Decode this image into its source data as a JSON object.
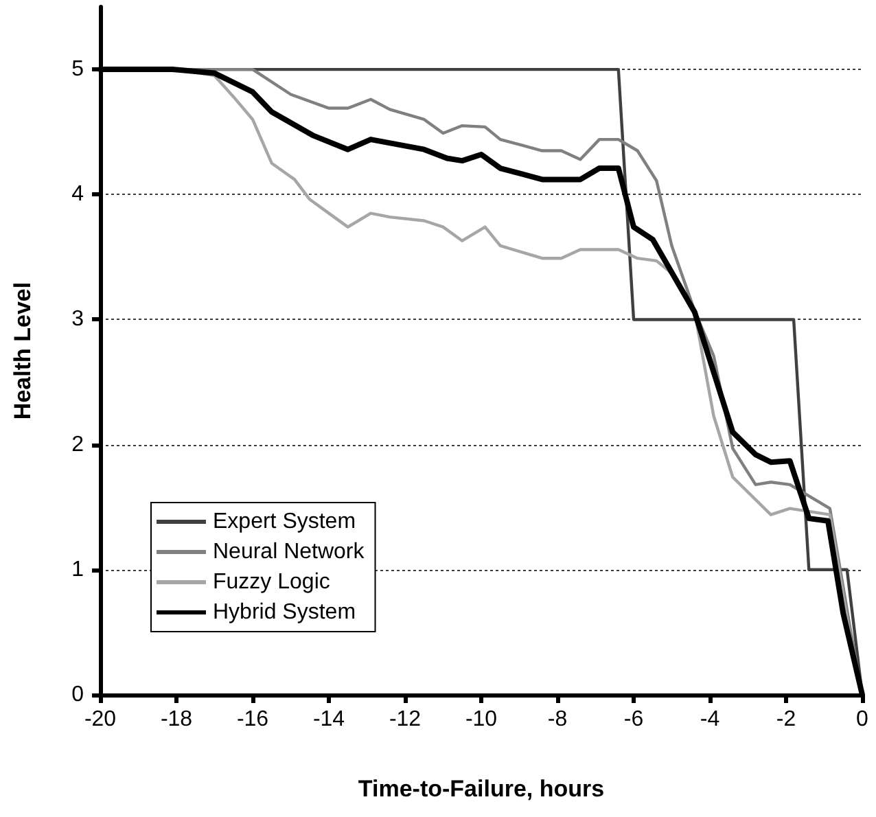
{
  "chart_data": {
    "type": "line",
    "xlabel": "Time-to-Failure, hours",
    "ylabel": "Health Level",
    "xlim": [
      -20,
      0
    ],
    "xticks": [
      -20,
      -18,
      -16,
      -14,
      -12,
      -10,
      -8,
      -6,
      -4,
      -2,
      0
    ],
    "ylim": [
      0,
      5.5
    ],
    "yticks": [
      0,
      1,
      2,
      3,
      4,
      5
    ],
    "grid": "y",
    "legend": "bottom left",
    "marker": "none",
    "line_style": "solid",
    "series": [
      {
        "name": "Expert System",
        "color": "#404040",
        "x": [
          -20,
          -6.4,
          -6,
          -1.8,
          -1.4,
          -0.4,
          0
        ],
        "values": [
          5,
          5,
          3,
          3,
          1,
          1,
          0
        ]
      },
      {
        "name": "Neural Network",
        "color": "#808080",
        "x": [
          -20,
          -16,
          -15,
          -14,
          -13.5,
          -12.9,
          -12.4,
          -11.5,
          -11,
          -10.5,
          -9.9,
          -9.5,
          -8.4,
          -7.9,
          -7.4,
          -6.9,
          -6.4,
          -5.9,
          -5.4,
          -5,
          -4.4,
          -3.9,
          -3.4,
          -2.8,
          -2.4,
          -1.9,
          -0.85,
          -0.3,
          0
        ],
        "values": [
          5,
          5,
          4.8,
          4.69,
          4.69,
          4.76,
          4.68,
          4.6,
          4.49,
          4.55,
          4.54,
          4.44,
          4.35,
          4.35,
          4.28,
          4.44,
          4.44,
          4.35,
          4.11,
          3.59,
          3.07,
          2.71,
          1.97,
          1.68,
          1.7,
          1.68,
          1.49,
          0.5,
          0
        ]
      },
      {
        "name": "Fuzzy Logic",
        "color": "#a6a6a6",
        "x": [
          -20,
          -18,
          -17,
          -16.5,
          -16,
          -15.5,
          -14.9,
          -14.5,
          -14,
          -13.5,
          -12.9,
          -12.4,
          -11.5,
          -11,
          -10.5,
          -9.9,
          -9.5,
          -8.4,
          -7.9,
          -7.4,
          -6.4,
          -5.9,
          -5.4,
          -5,
          -4.4,
          -3.9,
          -3.4,
          -2.4,
          -1.9,
          -0.85,
          -0.3,
          0
        ],
        "values": [
          5,
          5,
          4.95,
          4.78,
          4.6,
          4.25,
          4.12,
          3.96,
          3.85,
          3.74,
          3.85,
          3.82,
          3.79,
          3.74,
          3.63,
          3.74,
          3.59,
          3.49,
          3.49,
          3.56,
          3.56,
          3.49,
          3.47,
          3.37,
          3.06,
          2.23,
          1.74,
          1.44,
          1.49,
          1.44,
          0.43,
          0
        ]
      },
      {
        "name": "Hybrid System",
        "color": "#000000",
        "x": [
          -20,
          -18.1,
          -17,
          -16,
          -15.5,
          -14.4,
          -13.5,
          -12.9,
          -11.5,
          -10.9,
          -10.5,
          -10,
          -9.5,
          -8.4,
          -7.4,
          -6.9,
          -6.4,
          -6,
          -5.5,
          -4.4,
          -3.4,
          -2.8,
          -2.4,
          -1.9,
          -1.4,
          -0.9,
          -0.5,
          0
        ],
        "values": [
          5,
          5,
          4.97,
          4.82,
          4.66,
          4.47,
          4.36,
          4.44,
          4.36,
          4.29,
          4.27,
          4.32,
          4.21,
          4.12,
          4.12,
          4.21,
          4.21,
          3.74,
          3.64,
          3.06,
          2.1,
          1.92,
          1.86,
          1.87,
          1.41,
          1.39,
          0.65,
          0
        ]
      }
    ]
  }
}
